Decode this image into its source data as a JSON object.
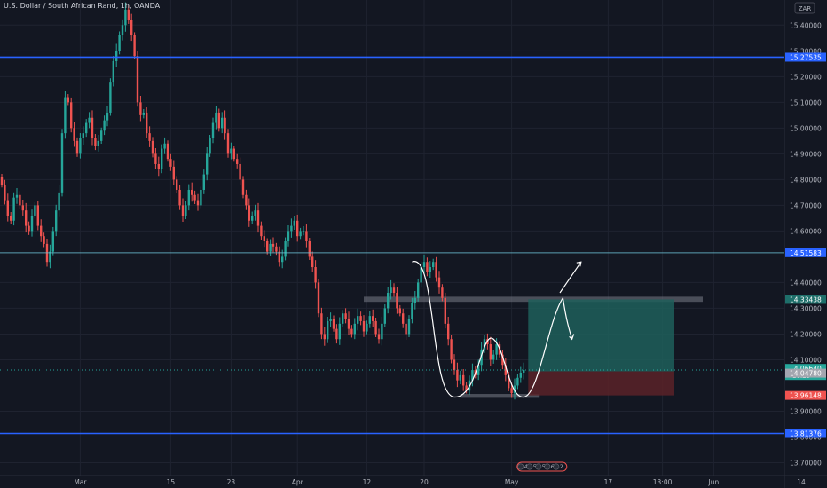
{
  "header": {
    "title": "U.S. Dollar / South African Rand, 1h, OANDA"
  },
  "currency_badge": "ZAR",
  "colors": {
    "background": "#131722",
    "grid": "#1f2330",
    "up": "#26a69a",
    "down": "#ef5350",
    "level_line": "#2962ff",
    "text": "#b2b5be",
    "zone": "#787b86",
    "target": "#1e5f5b",
    "stop": "#5b2228",
    "drawing": "#ffffff"
  },
  "chart_data": {
    "type": "candlestick",
    "symbol": "U.S. Dollar / South African Rand",
    "timeframe": "1h",
    "source": "OANDA",
    "ylim": [
      13.65,
      15.47
    ],
    "y_ticks": [
      "15.40000",
      "15.30000",
      "15.20000",
      "15.10000",
      "15.00000",
      "14.90000",
      "14.80000",
      "14.70000",
      "14.60000",
      "14.40000",
      "14.30000",
      "14.20000",
      "14.10000",
      "13.90000",
      "13.80000",
      "13.70000"
    ],
    "x_ticks": [
      {
        "label": "Mar",
        "bar": 26
      },
      {
        "label": "15",
        "bar": 56
      },
      {
        "label": "23",
        "bar": 76
      },
      {
        "label": "Apr",
        "bar": 98
      },
      {
        "label": "12",
        "bar": 121
      },
      {
        "label": "20",
        "bar": 140
      },
      {
        "label": "May",
        "bar": 169
      },
      {
        "label": "17",
        "bar": 201
      },
      {
        "label": "13:00",
        "bar": 219
      },
      {
        "label": "Jun",
        "bar": 236
      },
      {
        "label": "14",
        "bar": 265
      }
    ],
    "close": [
      14.78,
      14.72,
      14.66,
      14.64,
      14.73,
      14.74,
      14.7,
      14.68,
      14.62,
      14.6,
      14.66,
      14.7,
      14.62,
      14.58,
      14.55,
      14.48,
      14.52,
      14.6,
      14.68,
      14.75,
      14.98,
      15.12,
      15.1,
      15.0,
      14.95,
      14.9,
      14.96,
      14.98,
      15.02,
      15.04,
      14.96,
      14.93,
      14.95,
      14.99,
      15.03,
      15.06,
      15.18,
      15.26,
      15.3,
      15.36,
      15.4,
      15.46,
      15.42,
      15.36,
      15.28,
      15.1,
      15.05,
      15.06,
      14.98,
      14.95,
      14.9,
      14.86,
      14.84,
      14.92,
      14.94,
      14.88,
      14.85,
      14.8,
      14.76,
      14.7,
      14.66,
      14.7,
      14.76,
      14.74,
      14.72,
      14.7,
      14.76,
      14.82,
      14.9,
      14.96,
      15.02,
      15.06,
      15.0,
      15.04,
      14.98,
      14.9,
      14.92,
      14.88,
      14.86,
      14.8,
      14.74,
      14.7,
      14.64,
      14.66,
      14.68,
      14.62,
      14.58,
      14.56,
      14.52,
      14.55,
      14.54,
      14.52,
      14.48,
      14.5,
      14.56,
      14.6,
      14.62,
      14.64,
      14.58,
      14.6,
      14.6,
      14.56,
      14.5,
      14.46,
      14.4,
      14.28,
      14.2,
      14.18,
      14.25,
      14.26,
      14.22,
      14.18,
      14.24,
      14.28,
      14.26,
      14.22,
      14.2,
      14.24,
      14.27,
      14.25,
      14.21,
      14.24,
      14.27,
      14.25,
      14.2,
      14.18,
      14.24,
      14.3,
      14.36,
      14.38,
      14.36,
      14.3,
      14.28,
      14.24,
      14.2,
      14.26,
      14.32,
      14.34,
      14.4,
      14.46,
      14.48,
      14.44,
      14.46,
      14.48,
      14.42,
      14.38,
      14.34,
      14.24,
      14.18,
      14.1,
      14.06,
      14.02,
      14.04,
      14.0,
      13.98,
      14.02,
      14.06,
      14.04,
      14.08,
      14.14,
      14.18,
      14.16,
      14.1,
      14.12,
      14.16,
      14.12,
      14.08,
      14.04,
      13.99,
      13.97,
      14.0,
      14.03,
      14.05,
      14.06
    ]
  },
  "levels": [
    {
      "price": "15.27535"
    },
    {
      "price": "14.51583"
    },
    {
      "price": "13.81376"
    }
  ],
  "price_badges": [
    {
      "price": "14.33438",
      "color": "#1e6f6a"
    },
    {
      "price": "14.06640",
      "sub": "16:29",
      "color": "#26a69a"
    },
    {
      "price": "14.04780",
      "color": "#a3a6af"
    },
    {
      "price": "13.96148",
      "color": "#ef5350"
    }
  ],
  "position": {
    "entry": 14.055,
    "target": 14.3344,
    "stop": 13.9615
  },
  "resistance_zone": {
    "price_top": 14.345,
    "price_bottom": 14.325
  },
  "support_zone": {
    "price_top": 13.967,
    "price_bottom": 13.952
  },
  "time_markers": [
    "4",
    "5",
    "5",
    "6",
    "2"
  ]
}
